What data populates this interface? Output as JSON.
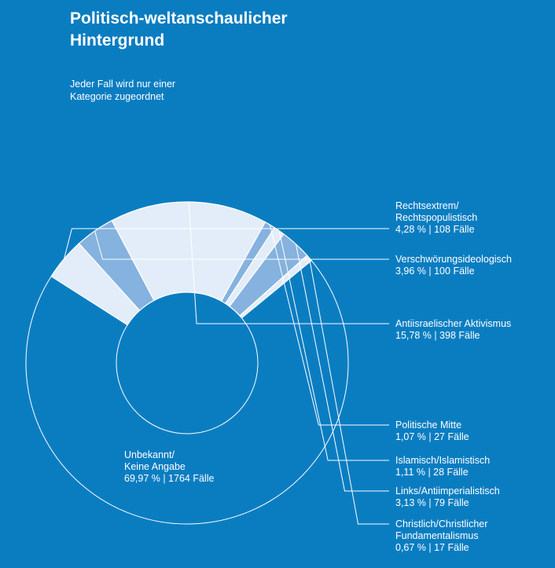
{
  "header": {
    "title_line1": "Politisch-weltanschaulicher",
    "title_line2": "Hintergrund",
    "subtitle_line1": "Jeder Fall wird nur einer",
    "subtitle_line2": "Kategorie zugeordnet"
  },
  "colors": {
    "background": "#0a7dc1",
    "light": "#e3edf9",
    "medium": "#85b2de",
    "dark": "#0a7dc1",
    "stroke": "#ffffff"
  },
  "chart_data": {
    "type": "pie",
    "variant": "donut",
    "title": "Politisch-weltanschaulicher Hintergrund",
    "subtitle": "Jeder Fall wird nur einer Kategorie zugeordnet",
    "slices": [
      {
        "label_lines": [
          "Rechtsextrem/",
          "Rechtspopulistisch"
        ],
        "percent": 4.28,
        "percent_text": "4,28 %",
        "cases": 108,
        "value_text": "4,28 % | 108 Fälle",
        "shade": "light"
      },
      {
        "label_lines": [
          "Verschwörungsideologisch"
        ],
        "percent": 3.96,
        "percent_text": "3,96 %",
        "cases": 100,
        "value_text": "3,96 % | 100 Fälle",
        "shade": "medium"
      },
      {
        "label_lines": [
          "Antiisraelischer Aktivismus"
        ],
        "percent": 15.78,
        "percent_text": "15,78 %",
        "cases": 398,
        "value_text": "15,78 % | 398 Fälle",
        "shade": "light"
      },
      {
        "label_lines": [
          "Politische Mitte"
        ],
        "percent": 1.07,
        "percent_text": "1,07 %",
        "cases": 27,
        "value_text": "1,07 % | 27 Fälle",
        "shade": "medium"
      },
      {
        "label_lines": [
          "Islamisch/Islamistisch"
        ],
        "percent": 1.11,
        "percent_text": "1,11 %",
        "cases": 28,
        "value_text": "1,11 % | 28 Fälle",
        "shade": "light"
      },
      {
        "label_lines": [
          "Links/Antiimperialistisch"
        ],
        "percent": 3.13,
        "percent_text": "3,13 %",
        "cases": 79,
        "value_text": "3,13 % | 79 Fälle",
        "shade": "medium"
      },
      {
        "label_lines": [
          "Christlich/Christlicher",
          "Fundamentalismus"
        ],
        "percent": 0.67,
        "percent_text": "0,67 %",
        "cases": 17,
        "value_text": "0,67 % | 17 Fälle",
        "shade": "light"
      },
      {
        "label_lines": [
          "Unbekannt/",
          "Keine Angabe"
        ],
        "percent": 69.97,
        "percent_text": "69,97 %",
        "cases": 1764,
        "value_text": "69,97 % | 1764 Fälle",
        "shade": "dark"
      }
    ]
  }
}
